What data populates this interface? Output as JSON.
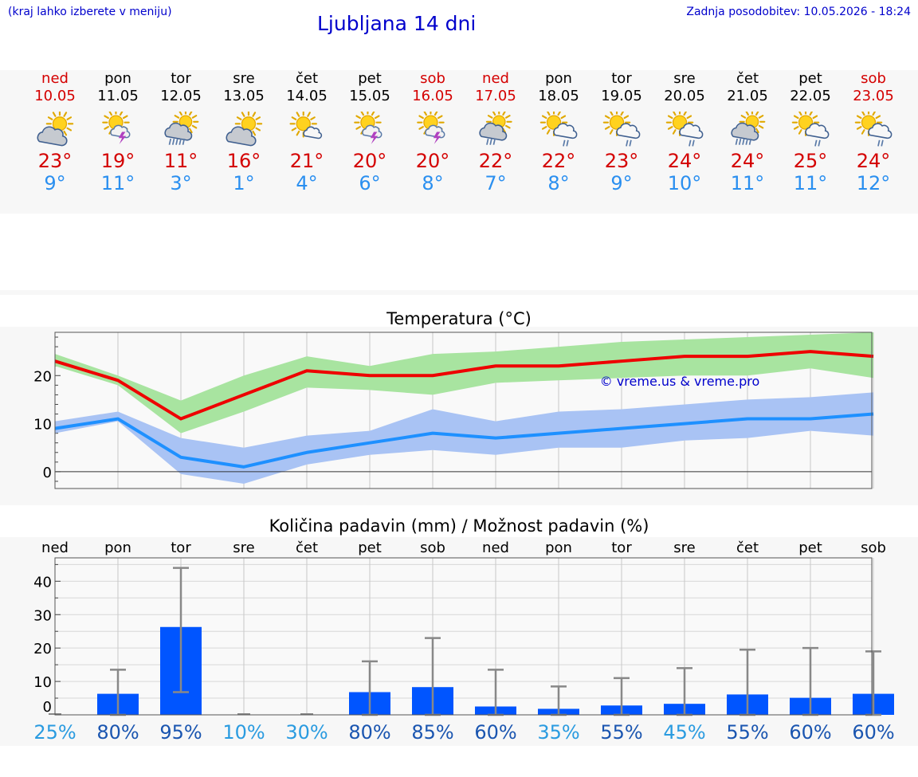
{
  "header": {
    "location_hint": "(kraj lahko izberete v meniju)",
    "title": "Ljubljana 14 dni",
    "updated": "Zadnja posodobitev: 10.05.2026 - 18:24"
  },
  "days": [
    {
      "name": "ned",
      "date": "10.05",
      "hi": "23°",
      "lo": "9°",
      "weekend": true,
      "icon": "partly-cloudy-icon"
    },
    {
      "name": "pon",
      "date": "11.05",
      "hi": "19°",
      "lo": "11°",
      "weekend": false,
      "icon": "sun-thunderstorm-icon"
    },
    {
      "name": "tor",
      "date": "12.05",
      "hi": "11°",
      "lo": "3°",
      "weekend": false,
      "icon": "cloud-heavy-rain-icon"
    },
    {
      "name": "sre",
      "date": "13.05",
      "hi": "16°",
      "lo": "1°",
      "weekend": false,
      "icon": "partly-cloudy-icon"
    },
    {
      "name": "čet",
      "date": "14.05",
      "hi": "21°",
      "lo": "4°",
      "weekend": false,
      "icon": "sun-small-cloud-icon"
    },
    {
      "name": "pet",
      "date": "15.05",
      "hi": "20°",
      "lo": "6°",
      "weekend": false,
      "icon": "sun-thunderstorm-icon"
    },
    {
      "name": "sob",
      "date": "16.05",
      "hi": "20°",
      "lo": "8°",
      "weekend": true,
      "icon": "sun-thunderstorm-icon"
    },
    {
      "name": "ned",
      "date": "17.05",
      "hi": "22°",
      "lo": "7°",
      "weekend": true,
      "icon": "cloud-rain-icon"
    },
    {
      "name": "pon",
      "date": "18.05",
      "hi": "22°",
      "lo": "8°",
      "weekend": false,
      "icon": "sun-cloud-rain-icon"
    },
    {
      "name": "tor",
      "date": "19.05",
      "hi": "23°",
      "lo": "9°",
      "weekend": false,
      "icon": "sun-cloud-rain-icon"
    },
    {
      "name": "sre",
      "date": "20.05",
      "hi": "24°",
      "lo": "10°",
      "weekend": false,
      "icon": "sun-cloud-rain-icon"
    },
    {
      "name": "čet",
      "date": "21.05",
      "hi": "24°",
      "lo": "11°",
      "weekend": false,
      "icon": "cloud-heavy-rain-icon"
    },
    {
      "name": "pet",
      "date": "22.05",
      "hi": "25°",
      "lo": "11°",
      "weekend": false,
      "icon": "sun-cloud-rain-icon"
    },
    {
      "name": "sob",
      "date": "23.05",
      "hi": "24°",
      "lo": "12°",
      "weekend": true,
      "icon": "sun-cloud-rain-icon"
    }
  ],
  "colors": {
    "weekend": "#d40000",
    "weekday": "#000000",
    "hi": "#d40000",
    "lo": "#2a8ff0",
    "hi_line": "#ee0000",
    "lo_line": "#1e90ff",
    "hi_band": "#a8e4a0",
    "lo_band": "#a9c3f4",
    "bar": "#0055ff",
    "err": "#888888"
  },
  "chart_data": [
    {
      "type": "line",
      "title": "Temperatura (°C)",
      "watermark": "© vreme.us & vreme.pro",
      "ylim": [
        -3.5,
        29
      ],
      "yticks": [
        0,
        10,
        20
      ],
      "grid": true,
      "series": [
        {
          "values": [
            23,
            19,
            11,
            16,
            21,
            20,
            20,
            22,
            22,
            23,
            24,
            24,
            25,
            24
          ],
          "band_low": [
            22,
            18,
            8,
            12.5,
            17.5,
            17,
            16,
            18.5,
            19,
            19.5,
            20,
            20,
            21.5,
            19.5
          ],
          "band_high": [
            24.5,
            20,
            14.8,
            20,
            24,
            22,
            24.5,
            25,
            26,
            27,
            27.5,
            28,
            28.5,
            29
          ]
        },
        {
          "values": [
            9,
            11,
            3,
            1,
            4,
            6,
            8,
            7,
            8,
            9,
            10,
            11,
            11,
            12
          ],
          "band_low": [
            8,
            10.5,
            -0.5,
            -2.5,
            1.5,
            3.5,
            4.5,
            3.5,
            5,
            5,
            6.5,
            7,
            8.5,
            7.5
          ],
          "band_high": [
            10.5,
            12.5,
            7,
            5,
            7.5,
            8.5,
            13,
            10.5,
            12.5,
            13,
            14,
            15,
            15.5,
            16.5
          ]
        }
      ]
    },
    {
      "type": "bar",
      "title": "Količina padavin (mm) / Možnost padavin (%)",
      "categories": [
        "ned",
        "pon",
        "tor",
        "sre",
        "čet",
        "pet",
        "sob",
        "ned",
        "pon",
        "tor",
        "sre",
        "čet",
        "pet",
        "sob"
      ],
      "ylim": [
        0,
        47
      ],
      "yticks": [
        0,
        10,
        20,
        30,
        40
      ],
      "grid": true,
      "values": [
        0,
        6.3,
        26.3,
        0,
        0,
        6.8,
        8.3,
        2.5,
        1.8,
        2.8,
        3.3,
        6.1,
        5.1,
        6.3
      ],
      "err_high": [
        0,
        13.5,
        44,
        0.2,
        0.2,
        16,
        23,
        13.5,
        8.5,
        11,
        14,
        19.5,
        20,
        19
      ],
      "err_low": [
        0,
        0,
        6.8,
        0,
        0,
        0,
        0,
        0,
        0,
        0,
        0,
        0,
        0,
        0
      ],
      "chance": [
        "25%",
        "80%",
        "95%",
        "10%",
        "30%",
        "80%",
        "85%",
        "60%",
        "35%",
        "55%",
        "45%",
        "55%",
        "60%",
        "60%"
      ],
      "chance_values": [
        25,
        80,
        95,
        10,
        30,
        80,
        85,
        60,
        35,
        55,
        45,
        55,
        60,
        60
      ]
    }
  ]
}
